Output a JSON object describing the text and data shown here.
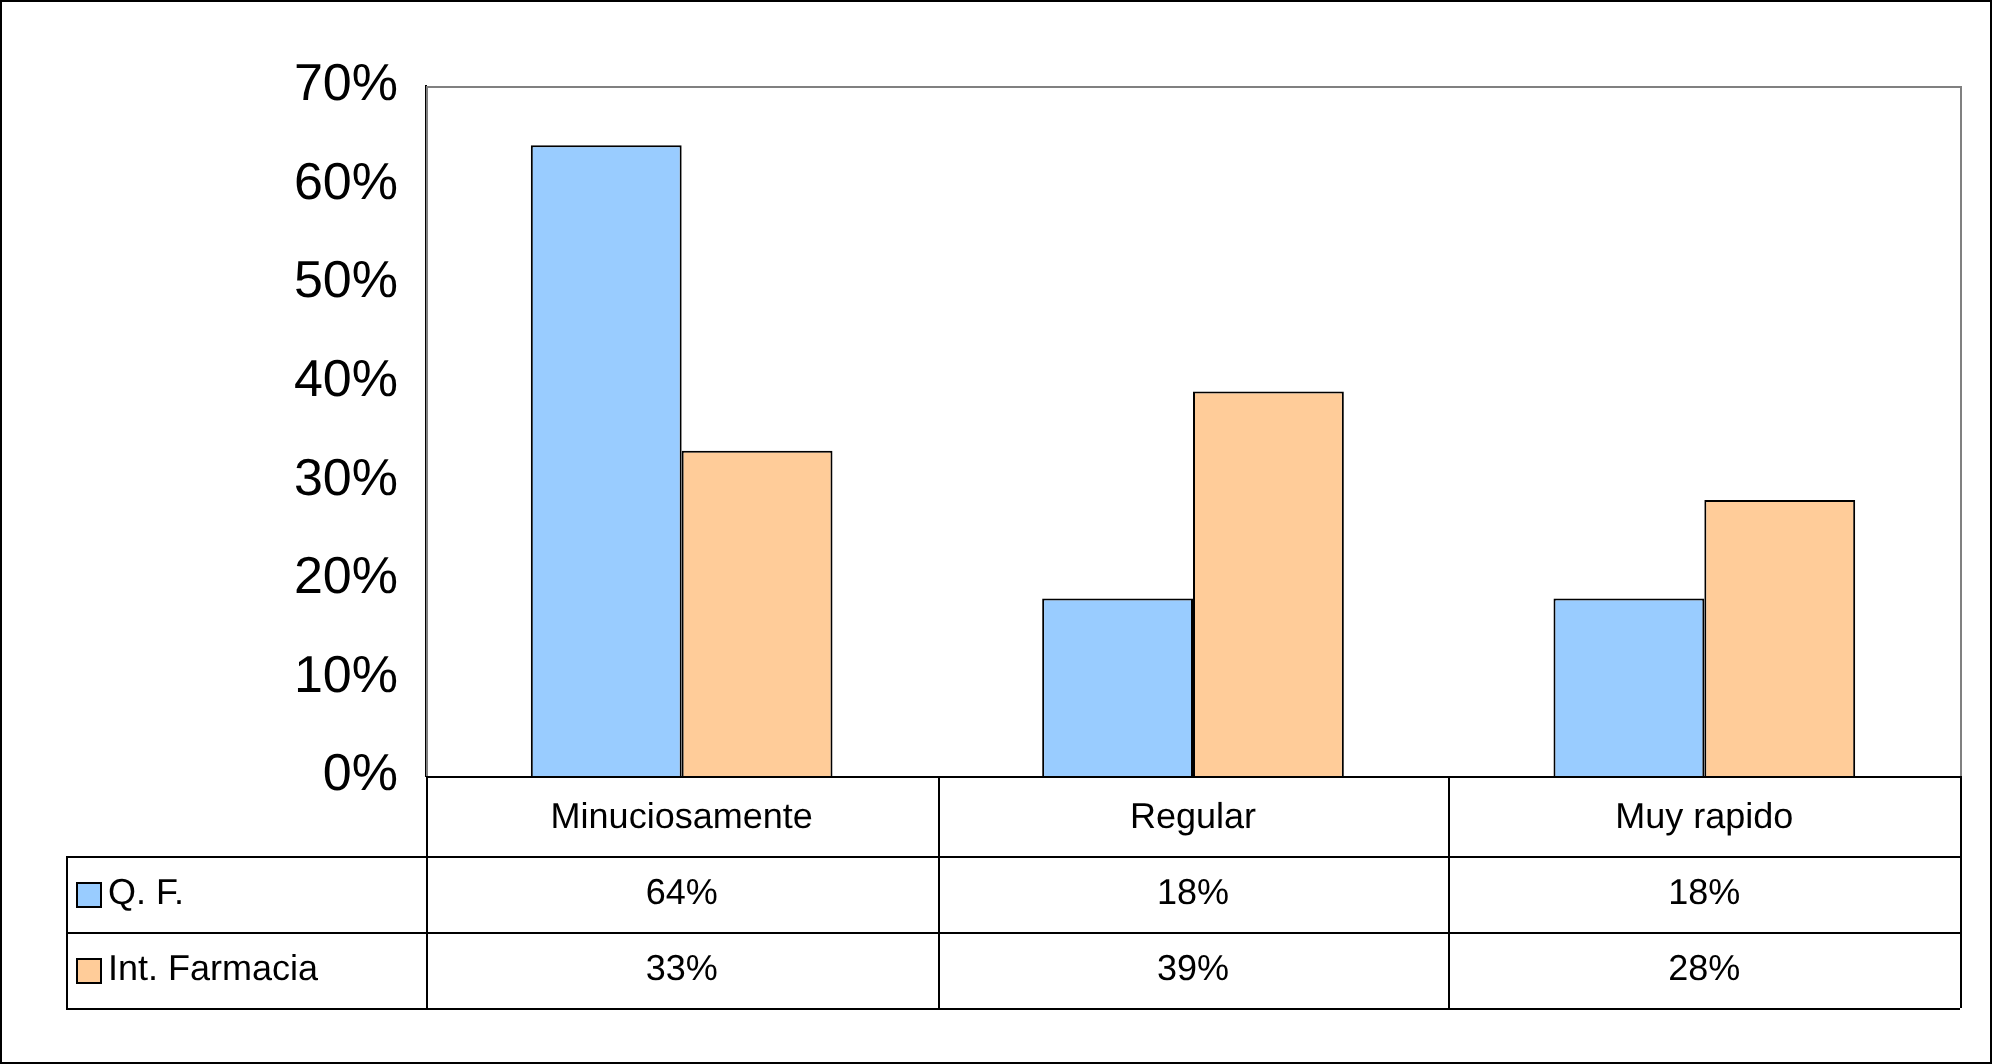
{
  "chart_data": {
    "type": "bar",
    "categories": [
      "Minuciosamente",
      "Regular",
      "Muy rapido"
    ],
    "series": [
      {
        "name": "Q. F.",
        "color": "#99ccff",
        "values": [
          64,
          18,
          18
        ],
        "value_labels": [
          "64%",
          "18%",
          "18%"
        ]
      },
      {
        "name": "Int. Farmacia",
        "color": "#ffcc99",
        "values": [
          33,
          39,
          28
        ],
        "value_labels": [
          "33%",
          "39%",
          "28%"
        ]
      }
    ],
    "ylim": [
      0,
      70
    ],
    "yticks": [
      {
        "value": 0,
        "label": "0%"
      },
      {
        "value": 10,
        "label": "10%"
      },
      {
        "value": 20,
        "label": "20%"
      },
      {
        "value": 30,
        "label": "30%"
      },
      {
        "value": 40,
        "label": "40%"
      },
      {
        "value": 50,
        "label": "50%"
      },
      {
        "value": 60,
        "label": "60%"
      },
      {
        "value": 70,
        "label": "70%"
      }
    ],
    "grid": false,
    "legend": "bottom left"
  }
}
